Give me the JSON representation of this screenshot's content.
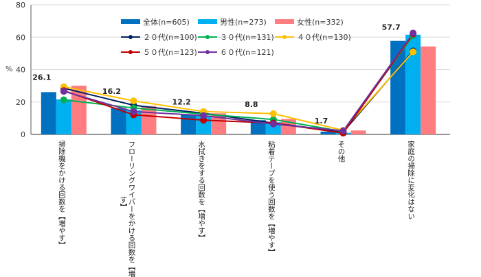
{
  "chart_data": {
    "type": "bar",
    "ylabel": "%",
    "ylim": [
      0,
      80
    ],
    "yticks": [
      0,
      20,
      40,
      60,
      80
    ],
    "grid": true,
    "legend_placement": "top",
    "categories": [
      "掃除機をかける回数を【増やす】",
      "フローリングワイパーをかける回数を【増やす】",
      "水拭きをする回数を【増やす】",
      "粘着テープを使う回数を【増やす】",
      "その他",
      "家庭の掃除に変化はない"
    ],
    "category_lines": [
      [
        "掃除機をかける回数を【増やす】"
      ],
      [
        "フローリングワイパーをかける回数を【増や",
        "す】"
      ],
      [
        "水拭きをする回数を【増やす】"
      ],
      [
        "粘着テープを使う回数を【増やす】"
      ],
      [
        "その他"
      ],
      [
        "家庭の掃除に変化はない"
      ]
    ],
    "bar_series": [
      {
        "name": "全体(n=605)",
        "color": "#0070C0",
        "values": [
          26.1,
          16.2,
          12.2,
          8.8,
          1.7,
          57.7
        ],
        "labels": [
          "26.1",
          "16.2",
          "12.2",
          "8.8",
          "1.7",
          "57.7"
        ]
      },
      {
        "name": "男性(n=273)",
        "color": "#00B0F0",
        "values": [
          21.6,
          14.8,
          11.5,
          7.5,
          1.0,
          61.5
        ]
      },
      {
        "name": "女性(n=332)",
        "color": "#FF7C80",
        "values": [
          30.1,
          17.5,
          13.0,
          9.5,
          2.4,
          54.3
        ]
      }
    ],
    "line_series": [
      {
        "name": "２０代(n=100)",
        "color": "#002060",
        "values": [
          28.5,
          18.0,
          13.0,
          7.0,
          1.5,
          51.5
        ]
      },
      {
        "name": "３０代(n=131)",
        "color": "#00B050",
        "values": [
          21.3,
          16.3,
          12.5,
          9.2,
          1.8,
          60.9
        ]
      },
      {
        "name": "４０代(n=130)",
        "color": "#FFC000",
        "values": [
          29.4,
          20.7,
          14.1,
          12.8,
          2.5,
          51.0
        ]
      },
      {
        "name": "５０代(n=123)",
        "color": "#C00000",
        "values": [
          27.0,
          12.1,
          8.8,
          7.0,
          0.8,
          62.0
        ]
      },
      {
        "name": "６０代(n=121)",
        "color": "#7030A0",
        "values": [
          26.6,
          14.1,
          11.6,
          6.4,
          2.2,
          62.5
        ]
      }
    ]
  }
}
